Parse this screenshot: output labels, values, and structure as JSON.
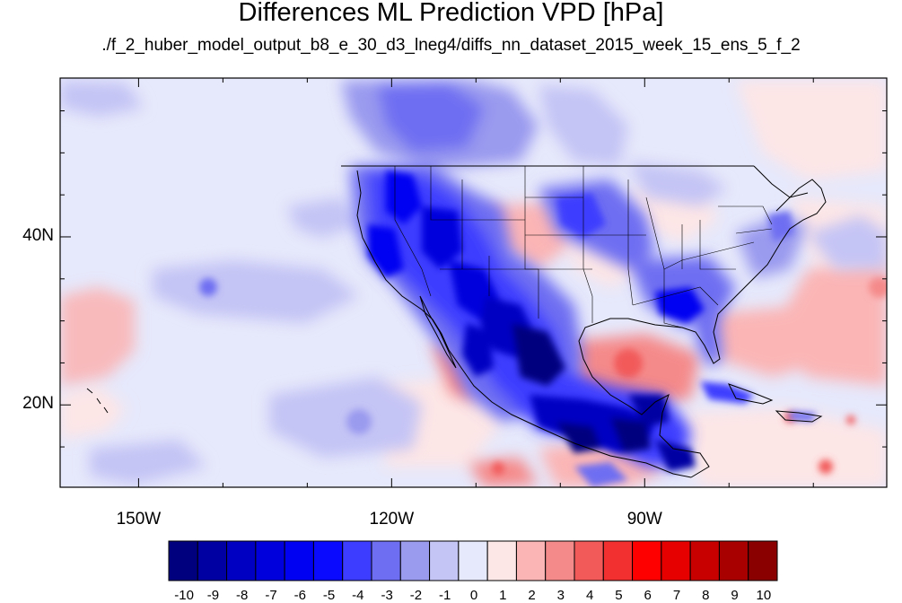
{
  "title": "Differences ML Prediction VPD [hPa]",
  "subtitle": "./f_2_huber_model_output_b8_e_30_d3_lneg4/diffs_nn_dataset_2015_week_15_ens_5_f_2",
  "map": {
    "projection": "cylindrical equidistant",
    "lon_range": [
      -159.3,
      -61.3
    ],
    "lat_range": [
      10.2,
      58.9
    ],
    "lon_ticks": [
      {
        "lon": -150,
        "label": "150W"
      },
      {
        "lon": -120,
        "label": "120W"
      },
      {
        "lon": -90,
        "label": "90W"
      }
    ],
    "lat_ticks": [
      {
        "lat": 40,
        "label": "40N"
      },
      {
        "lat": 20,
        "label": "20N"
      }
    ]
  },
  "colorbar": {
    "labels": [
      "-10",
      "-9",
      "-8",
      "-7",
      "-6",
      "-5",
      "-4",
      "-3",
      "-2",
      "-1",
      "0",
      "1",
      "2",
      "3",
      "4",
      "5",
      "6",
      "7",
      "8",
      "9",
      "10"
    ],
    "colors": [
      "#00007f",
      "#0000a2",
      "#0000c2",
      "#0000dd",
      "#0000f2",
      "#0a0aff",
      "#3d3dff",
      "#6e6ef2",
      "#9a9aef",
      "#c4c4f5",
      "#e6e8fb",
      "#fde6e6",
      "#fbb5b5",
      "#f58a8a",
      "#f25a5a",
      "#f23030",
      "#ff0000",
      "#e60000",
      "#c80000",
      "#a80000",
      "#8a0000"
    ]
  },
  "colors": {
    "ocean_background": "#e6e8fb",
    "coastline": "#000000"
  }
}
